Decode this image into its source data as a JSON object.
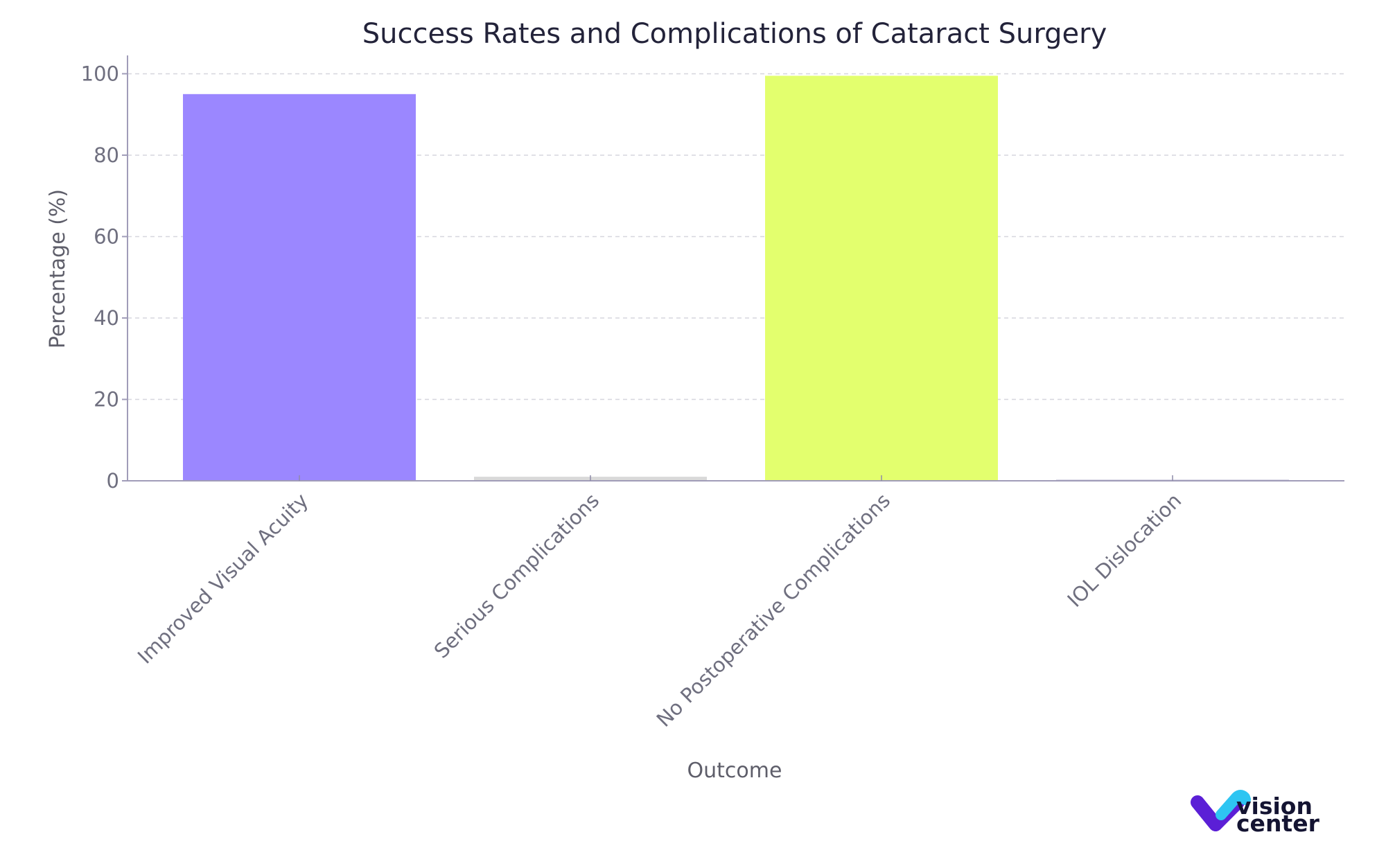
{
  "chart_data": {
    "type": "bar",
    "title": "Success Rates and Complications of Cataract Surgery",
    "xlabel": "Outcome",
    "ylabel": "Percentage (%)",
    "categories": [
      "Improved Visual Acuity",
      "Serious Complications",
      "No Postoperative Complications",
      "IOL Dislocation"
    ],
    "values": [
      95,
      1,
      99.5,
      0.2
    ],
    "colors": [
      "#9b87ff",
      "#d9d9d9",
      "#e3ff6e",
      "#2d2a6e"
    ],
    "ylim": [
      0,
      104.5
    ],
    "yticks": [
      0,
      20,
      40,
      60,
      80,
      100
    ],
    "grid": "y-dashed",
    "legend": "none"
  },
  "logo": {
    "line1": "vision",
    "line2": "center",
    "colors": [
      "#5b1fd6",
      "#2ec5f2"
    ]
  }
}
